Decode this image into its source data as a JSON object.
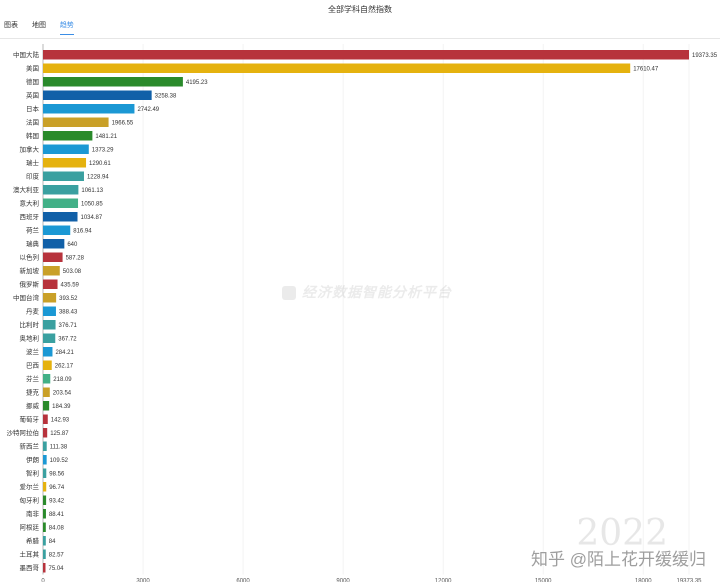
{
  "title": "全部学科自然指数",
  "tabs": [
    {
      "label": "图表",
      "active": false
    },
    {
      "label": "地图",
      "active": false
    },
    {
      "label": "趋势",
      "active": true
    }
  ],
  "watermark": "经济数据智能分析平台",
  "year": "2022",
  "credit": "知乎 @陌上花开缓缓归",
  "colors": [
    "#b7333c",
    "#e5b20f",
    "#2a8a2b",
    "#1160a8",
    "#1b98d4",
    "#c9a028",
    "#3aa0a0",
    "#42b087"
  ],
  "chart_data": {
    "type": "bar",
    "orientation": "horizontal",
    "categories": [
      "中国大陆",
      "美国",
      "德国",
      "英国",
      "日本",
      "法国",
      "韩国",
      "加拿大",
      "瑞士",
      "印度",
      "澳大利亚",
      "意大利",
      "西班牙",
      "荷兰",
      "瑞典",
      "以色列",
      "新加坡",
      "俄罗斯",
      "中国台湾",
      "丹麦",
      "比利时",
      "奥地利",
      "波兰",
      "巴西",
      "芬兰",
      "捷克",
      "挪威",
      "葡萄牙",
      "沙特阿拉伯",
      "新西兰",
      "伊朗",
      "智利",
      "爱尔兰",
      "匈牙利",
      "南非",
      "阿根廷",
      "希腊",
      "土耳其",
      "墨西哥"
    ],
    "values": [
      19373.35,
      17610.47,
      4195.23,
      3258.38,
      2742.49,
      1966.55,
      1481.21,
      1373.29,
      1290.61,
      1228.94,
      1061.13,
      1050.85,
      1034.87,
      816.94,
      640,
      587.28,
      503.08,
      435.59,
      393.52,
      388.43,
      376.71,
      367.72,
      284.21,
      262.17,
      218.09,
      203.54,
      184.39,
      142.93,
      125.87,
      111.38,
      109.52,
      98.56,
      96.74,
      93.42,
      88.41,
      84.08,
      84,
      82.57,
      75.04
    ],
    "bar_colors": [
      "#b7333c",
      "#e5b20f",
      "#2a8a2b",
      "#1160a8",
      "#1b98d4",
      "#c9a028",
      "#2a8a2b",
      "#1b98d4",
      "#e5b20f",
      "#3aa0a0",
      "#3aa0a0",
      "#42b087",
      "#1160a8",
      "#1b98d4",
      "#1160a8",
      "#b7333c",
      "#c9a028",
      "#b7333c",
      "#c9a028",
      "#1b98d4",
      "#3aa0a0",
      "#3aa0a0",
      "#1b98d4",
      "#e5b20f",
      "#42b087",
      "#c9a028",
      "#2a8a2b",
      "#b7333c",
      "#b7333c",
      "#3aa0a0",
      "#1b98d4",
      "#3aa0a0",
      "#e5b20f",
      "#2a8a2b",
      "#2a8a2b",
      "#2a8a2b",
      "#3aa0a0",
      "#3aa0a0",
      "#b7333c"
    ],
    "xticks": [
      "0",
      "3000",
      "6000",
      "9000",
      "12000",
      "15000",
      "18000",
      "19373.35"
    ],
    "xtick_values": [
      0,
      3000,
      6000,
      9000,
      12000,
      15000,
      18000,
      19373.35
    ],
    "xlim": [
      0,
      19373.35
    ],
    "grid": true
  }
}
